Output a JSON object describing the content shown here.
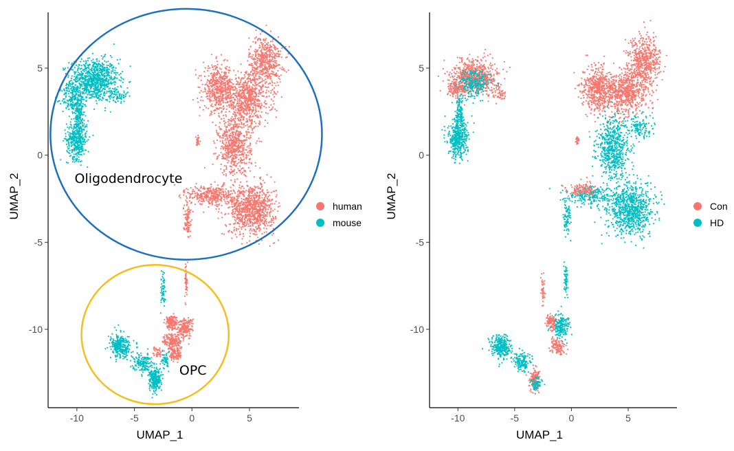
{
  "chart_data": [
    {
      "type": "scatter",
      "xlabel": "UMAP_1",
      "ylabel": "UMAP_2",
      "xlim": [
        -12.5,
        9.3
      ],
      "ylim": [
        -14.5,
        8.2
      ],
      "x_ticks": [
        -10,
        -5,
        0,
        5
      ],
      "y_ticks": [
        5,
        0,
        -5,
        -10
      ],
      "grid": false,
      "legend_position": "right",
      "series": [
        {
          "name": "human",
          "color": "#F8766D"
        },
        {
          "name": "mouse",
          "color": "#00BFC4"
        }
      ],
      "clusters": [
        {
          "series": "mouse",
          "cx": -8.5,
          "cy": 4.3,
          "rx": 1.9,
          "ry": 1.1,
          "n": 900
        },
        {
          "series": "mouse",
          "cx": -10.3,
          "cy": 3.2,
          "rx": 0.9,
          "ry": 0.8,
          "n": 200
        },
        {
          "series": "mouse",
          "cx": -10.0,
          "cy": 0.9,
          "rx": 0.8,
          "ry": 1.0,
          "n": 400
        },
        {
          "series": "mouse",
          "cx": -9.8,
          "cy": 2.3,
          "rx": 0.35,
          "ry": 0.9,
          "n": 120
        },
        {
          "series": "mouse",
          "cx": -6.4,
          "cy": 3.4,
          "rx": 0.7,
          "ry": 0.3,
          "n": 60
        },
        {
          "series": "human",
          "cx": 6.4,
          "cy": 5.4,
          "rx": 1.3,
          "ry": 1.3,
          "n": 500
        },
        {
          "series": "human",
          "cx": 4.8,
          "cy": 3.2,
          "rx": 1.8,
          "ry": 1.4,
          "n": 700
        },
        {
          "series": "human",
          "cx": 2.3,
          "cy": 3.8,
          "rx": 1.2,
          "ry": 1.2,
          "n": 500
        },
        {
          "series": "human",
          "cx": 3.7,
          "cy": 0.5,
          "rx": 1.3,
          "ry": 1.5,
          "n": 600
        },
        {
          "series": "human",
          "cx": 5.2,
          "cy": -3.1,
          "rx": 1.8,
          "ry": 1.3,
          "n": 900
        },
        {
          "series": "human",
          "cx": 1.7,
          "cy": -2.3,
          "rx": 1.8,
          "ry": 0.5,
          "n": 350
        },
        {
          "series": "human",
          "cx": -0.4,
          "cy": -3.6,
          "rx": 0.3,
          "ry": 0.9,
          "n": 100
        },
        {
          "series": "human",
          "cx": 0.5,
          "cy": 0.8,
          "rx": 0.15,
          "ry": 0.3,
          "n": 25
        },
        {
          "series": "human",
          "cx": -1.8,
          "cy": -9.6,
          "rx": 0.5,
          "ry": 0.4,
          "n": 150
        },
        {
          "series": "human",
          "cx": -0.6,
          "cy": -9.9,
          "rx": 0.6,
          "ry": 0.5,
          "n": 180
        },
        {
          "series": "human",
          "cx": -1.7,
          "cy": -10.7,
          "rx": 0.7,
          "ry": 0.4,
          "n": 180
        },
        {
          "series": "human",
          "cx": -1.4,
          "cy": -11.4,
          "rx": 0.5,
          "ry": 0.4,
          "n": 100
        },
        {
          "series": "human",
          "cx": -0.5,
          "cy": -7.2,
          "rx": 0.1,
          "ry": 0.9,
          "n": 50
        },
        {
          "series": "human",
          "cx": -3.0,
          "cy": -11.3,
          "rx": 0.5,
          "ry": 0.3,
          "n": 40
        },
        {
          "series": "mouse",
          "cx": -6.2,
          "cy": -11.0,
          "rx": 0.8,
          "ry": 0.6,
          "n": 300
        },
        {
          "series": "mouse",
          "cx": -4.3,
          "cy": -11.9,
          "rx": 0.7,
          "ry": 0.5,
          "n": 150
        },
        {
          "series": "mouse",
          "cx": -3.2,
          "cy": -12.9,
          "rx": 0.5,
          "ry": 0.6,
          "n": 250
        },
        {
          "series": "mouse",
          "cx": -2.5,
          "cy": -7.8,
          "rx": 0.2,
          "ry": 0.9,
          "n": 60
        },
        {
          "series": "mouse",
          "cx": -2.3,
          "cy": -11.8,
          "rx": 0.3,
          "ry": 0.5,
          "n": 50
        }
      ],
      "annotations": [
        {
          "text": "Oligodendrocyte",
          "x": -10.2,
          "y": -1.6,
          "ellipse": {
            "cx": -0.5,
            "cy": 1.2,
            "rx": 11.8,
            "ry": 7.2,
            "color": "#1E6FC0"
          }
        },
        {
          "text": "OPC",
          "x": -1.1,
          "y": -12.6,
          "ellipse": {
            "cx": -3.2,
            "cy": -10.3,
            "rx": 6.4,
            "ry": 4.0,
            "color": "#F5BE1C"
          }
        }
      ]
    },
    {
      "type": "scatter",
      "xlabel": "UMAP_1",
      "ylabel": "UMAP_2",
      "xlim": [
        -12.5,
        9.3
      ],
      "ylim": [
        -14.5,
        8.2
      ],
      "x_ticks": [
        -10,
        -5,
        0,
        5
      ],
      "y_ticks": [
        5,
        0,
        -5,
        -10
      ],
      "grid": false,
      "legend_position": "right",
      "series": [
        {
          "name": "Con",
          "color": "#F8766D"
        },
        {
          "name": "HD",
          "color": "#00BFC4"
        }
      ],
      "clusters": [
        {
          "series": "Con",
          "cx": -8.5,
          "cy": 4.5,
          "rx": 1.8,
          "ry": 0.9,
          "n": 700
        },
        {
          "series": "HD",
          "cx": -8.6,
          "cy": 4.1,
          "rx": 1.3,
          "ry": 0.7,
          "n": 250
        },
        {
          "series": "Con",
          "cx": -10.2,
          "cy": 3.8,
          "rx": 0.6,
          "ry": 0.4,
          "n": 120
        },
        {
          "series": "HD",
          "cx": -10.0,
          "cy": 0.9,
          "rx": 0.8,
          "ry": 1.0,
          "n": 400
        },
        {
          "series": "HD",
          "cx": -9.8,
          "cy": 2.4,
          "rx": 0.35,
          "ry": 0.9,
          "n": 120
        },
        {
          "series": "Con",
          "cx": -6.3,
          "cy": 3.5,
          "rx": 0.6,
          "ry": 0.3,
          "n": 40
        },
        {
          "series": "Con",
          "cx": 6.4,
          "cy": 5.4,
          "rx": 1.3,
          "ry": 1.3,
          "n": 550
        },
        {
          "series": "Con",
          "cx": 4.8,
          "cy": 3.6,
          "rx": 1.7,
          "ry": 1.1,
          "n": 650
        },
        {
          "series": "Con",
          "cx": 2.3,
          "cy": 3.8,
          "rx": 1.2,
          "ry": 1.2,
          "n": 500
        },
        {
          "series": "HD",
          "cx": 3.7,
          "cy": 0.4,
          "rx": 1.3,
          "ry": 1.6,
          "n": 600
        },
        {
          "series": "HD",
          "cx": 5.2,
          "cy": -3.1,
          "rx": 1.8,
          "ry": 1.3,
          "n": 850
        },
        {
          "series": "HD",
          "cx": 1.7,
          "cy": -2.3,
          "rx": 1.8,
          "ry": 0.5,
          "n": 250
        },
        {
          "series": "Con",
          "cx": 0.9,
          "cy": -2.0,
          "rx": 1.2,
          "ry": 0.4,
          "n": 120
        },
        {
          "series": "HD",
          "cx": -0.4,
          "cy": -3.6,
          "rx": 0.3,
          "ry": 0.9,
          "n": 80
        },
        {
          "series": "Con",
          "cx": 0.5,
          "cy": 0.8,
          "rx": 0.15,
          "ry": 0.3,
          "n": 25
        },
        {
          "series": "HD",
          "cx": 6.0,
          "cy": 1.5,
          "rx": 1.0,
          "ry": 0.7,
          "n": 120
        },
        {
          "series": "HD",
          "cx": -6.2,
          "cy": -11.0,
          "rx": 0.8,
          "ry": 0.6,
          "n": 300
        },
        {
          "series": "HD",
          "cx": -4.3,
          "cy": -11.9,
          "rx": 0.7,
          "ry": 0.5,
          "n": 150
        },
        {
          "series": "Con",
          "cx": -3.2,
          "cy": -12.9,
          "rx": 0.4,
          "ry": 0.5,
          "n": 180
        },
        {
          "series": "HD",
          "cx": -3.1,
          "cy": -13.1,
          "rx": 0.4,
          "ry": 0.4,
          "n": 80
        },
        {
          "series": "Con",
          "cx": -1.8,
          "cy": -9.6,
          "rx": 0.4,
          "ry": 0.4,
          "n": 100
        },
        {
          "series": "HD",
          "cx": -0.9,
          "cy": -9.8,
          "rx": 0.7,
          "ry": 0.6,
          "n": 200
        },
        {
          "series": "Con",
          "cx": -1.2,
          "cy": -11.0,
          "rx": 0.6,
          "ry": 0.4,
          "n": 120
        },
        {
          "series": "HD",
          "cx": -0.5,
          "cy": -7.2,
          "rx": 0.15,
          "ry": 0.9,
          "n": 60
        },
        {
          "series": "Con",
          "cx": -2.5,
          "cy": -7.8,
          "rx": 0.15,
          "ry": 0.8,
          "n": 40
        }
      ]
    }
  ]
}
